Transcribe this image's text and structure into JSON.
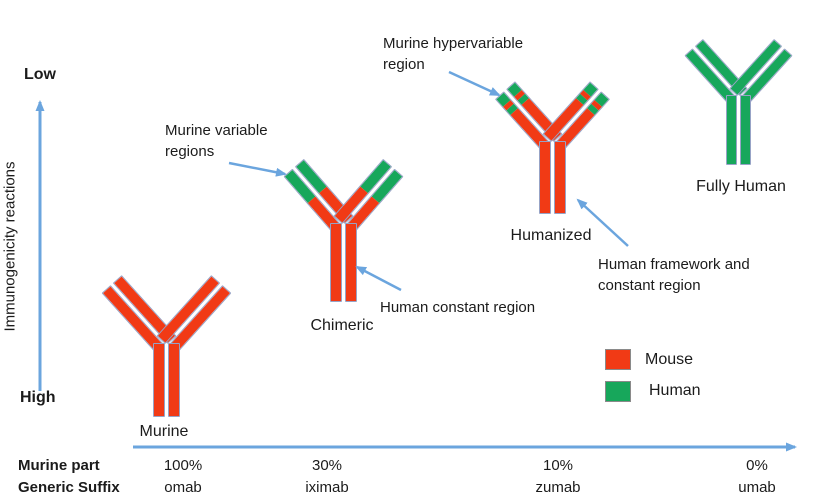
{
  "colors": {
    "mouse": "#f13a15",
    "human": "#17a75b",
    "arrow": "#6ba5de",
    "bar_border": "#97a3c6"
  },
  "y_axis": {
    "top_label": "Low",
    "bottom_label": "High",
    "title": "Immunogenicity reactions"
  },
  "x_axis": {
    "row1_header": "Murine part",
    "row2_header": "Generic Suffix"
  },
  "antibodies": [
    {
      "label": "Murine",
      "murine_part": "100%",
      "generic_suffix": "omab",
      "arm_segments": [
        {
          "color": "mouse",
          "pct": 100
        }
      ],
      "stem_segments": [
        {
          "color": "mouse",
          "pct": 100
        }
      ]
    },
    {
      "label": "Chimeric",
      "murine_part": "30%",
      "generic_suffix": "iximab",
      "arm_segments": [
        {
          "color": "human",
          "pct": 47
        },
        {
          "color": "mouse",
          "pct": 53
        }
      ],
      "stem_segments": [
        {
          "color": "mouse",
          "pct": 100
        }
      ]
    },
    {
      "label": "Humanized",
      "murine_part": "10%",
      "generic_suffix": "zumab",
      "arm_segments": [
        {
          "color": "human",
          "pct": 14
        },
        {
          "color": "mouse",
          "pct": 8
        },
        {
          "color": "human",
          "pct": 8
        },
        {
          "color": "mouse",
          "pct": 70
        }
      ],
      "stem_segments": [
        {
          "color": "mouse",
          "pct": 100
        }
      ]
    },
    {
      "label": "Fully Human",
      "murine_part": "0%",
      "generic_suffix": "umab",
      "arm_segments": [
        {
          "color": "human",
          "pct": 100
        }
      ],
      "stem_segments": [
        {
          "color": "human",
          "pct": 100
        }
      ]
    }
  ],
  "annotations": [
    {
      "text": "Murine variable regions"
    },
    {
      "text": "Murine hypervariable region"
    },
    {
      "text": "Human constant region"
    },
    {
      "text": "Human framework and constant region"
    }
  ],
  "legend": {
    "items": [
      {
        "label": "Mouse",
        "color": "mouse"
      },
      {
        "label": "Human",
        "color": "human"
      }
    ]
  }
}
